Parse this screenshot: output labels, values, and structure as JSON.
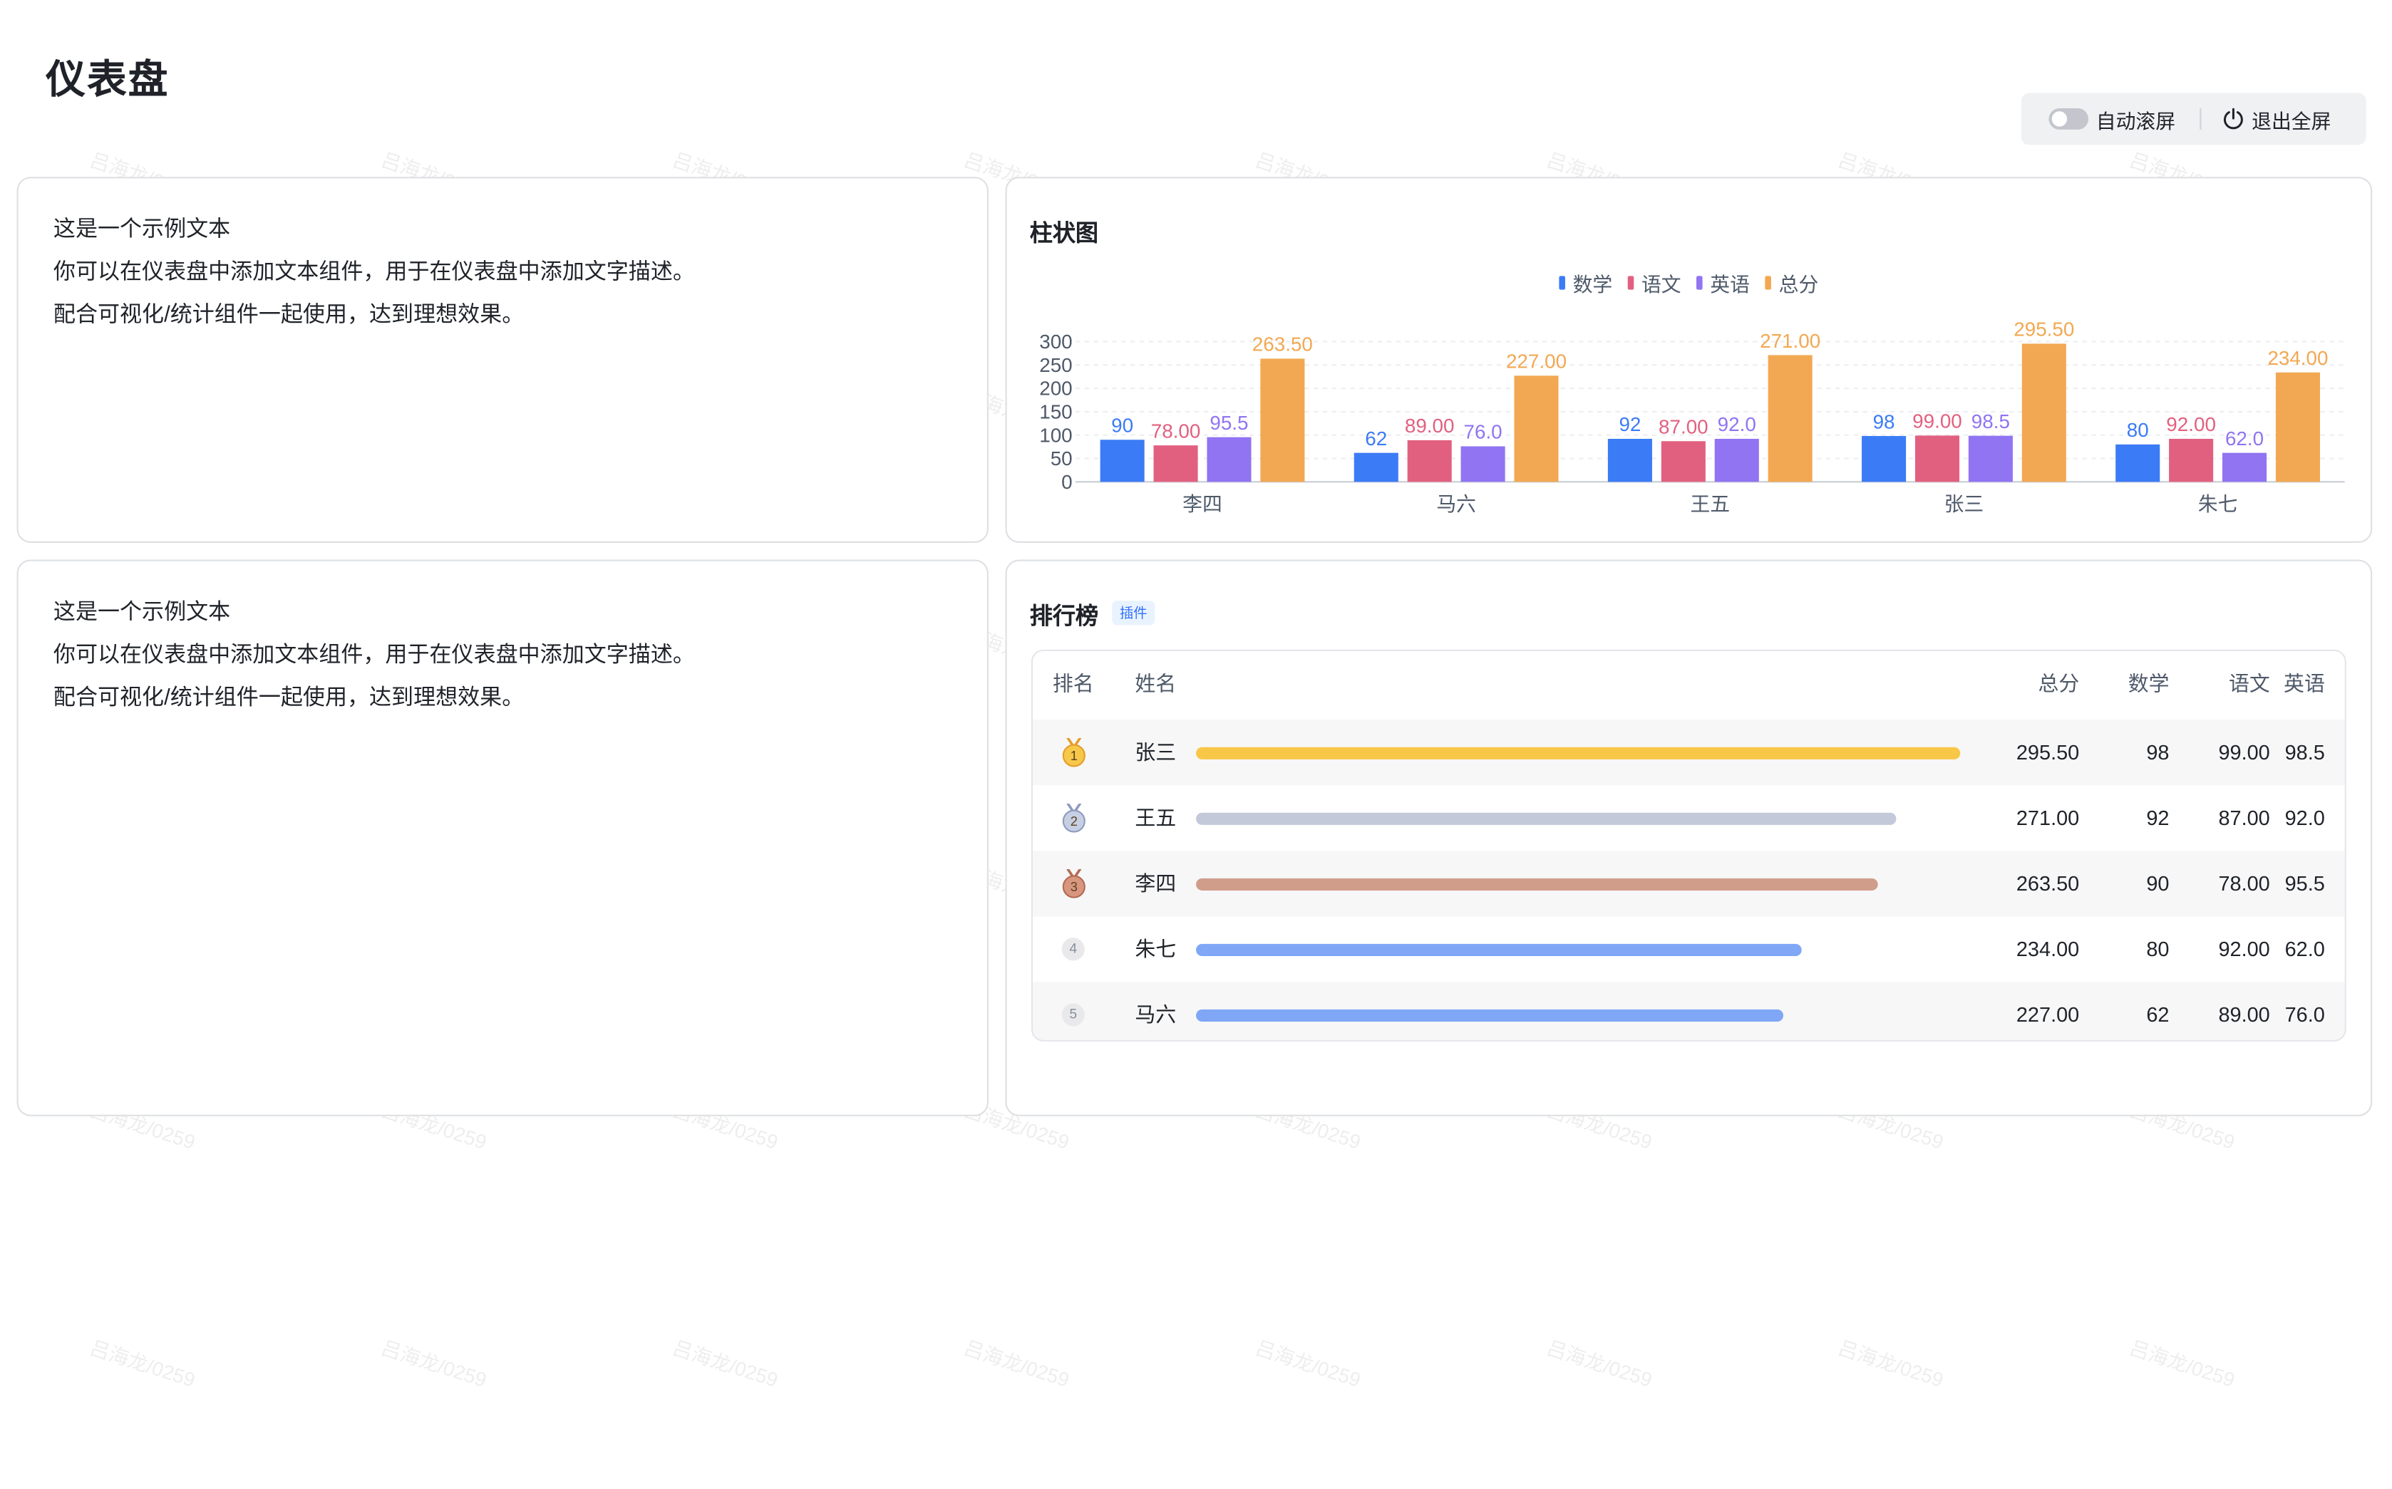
{
  "page": {
    "title": "仪表盘"
  },
  "toolbar": {
    "auto_scroll_label": "自动滚屏",
    "auto_scroll_on": false,
    "exit_fullscreen_label": "退出全屏"
  },
  "text_cards": [
    {
      "lines": [
        "这是一个示例文本",
        "你可以在仪表盘中添加文本组件，用于在仪表盘中添加文字描述。",
        "配合可视化/统计组件一起使用，达到理想效果。"
      ]
    },
    {
      "lines": [
        "这是一个示例文本",
        "你可以在仪表盘中添加文本组件，用于在仪表盘中添加文字描述。",
        "配合可视化/统计组件一起使用，达到理想效果。"
      ]
    }
  ],
  "bar_card": {
    "title": "柱状图"
  },
  "chart_data": {
    "type": "bar",
    "title": "柱状图",
    "categories": [
      "李四",
      "马六",
      "王五",
      "张三",
      "朱七"
    ],
    "series": [
      {
        "name": "数学",
        "color": "#3b7bf5",
        "values": [
          90,
          62,
          92,
          98,
          80
        ],
        "labels": [
          "90",
          "62",
          "92",
          "98",
          "80"
        ]
      },
      {
        "name": "语文",
        "color": "#e2607f",
        "values": [
          78,
          89,
          87,
          99,
          92
        ],
        "labels": [
          "78.00",
          "89.00",
          "87.00",
          "99.00",
          "92.00"
        ]
      },
      {
        "name": "英语",
        "color": "#9074f2",
        "values": [
          95.5,
          76,
          92,
          98.5,
          62
        ],
        "labels": [
          "95.5",
          "76.0",
          "92.0",
          "98.5",
          "62.0"
        ]
      },
      {
        "name": "总分",
        "color": "#f2a852",
        "values": [
          263.5,
          227,
          271,
          295.5,
          234
        ],
        "labels": [
          "263.50",
          "227.00",
          "271.00",
          "295.50",
          "234.00"
        ]
      }
    ],
    "yticks": [
      "0",
      "50",
      "100",
      "150",
      "200",
      "250",
      "300"
    ],
    "ylim": [
      0,
      300
    ],
    "grid": true,
    "legend_position": "top-center"
  },
  "ranking": {
    "title": "排行榜",
    "badge": "插件",
    "headers": {
      "rank": "排名",
      "name": "姓名",
      "total": "总分",
      "math": "数学",
      "chinese": "语文",
      "english": "英语"
    },
    "bar_max": 295.5,
    "rows": [
      {
        "rank": "1",
        "medal": "gold",
        "name": "张三",
        "total_value": 295.5,
        "total": "295.50",
        "math": "98",
        "chinese": "99.00",
        "english": "98.5",
        "bar_color": "#f8c748"
      },
      {
        "rank": "2",
        "medal": "silver",
        "name": "王五",
        "total_value": 271.0,
        "total": "271.00",
        "math": "92",
        "chinese": "87.00",
        "english": "92.0",
        "bar_color": "#c4c9d9"
      },
      {
        "rank": "3",
        "medal": "bronze",
        "name": "李四",
        "total_value": 263.5,
        "total": "263.50",
        "math": "90",
        "chinese": "78.00",
        "english": "95.5",
        "bar_color": "#d09d8b"
      },
      {
        "rank": "4",
        "medal": "none",
        "name": "朱七",
        "total_value": 234.0,
        "total": "234.00",
        "math": "80",
        "chinese": "92.00",
        "english": "62.0",
        "bar_color": "#7fa7f6"
      },
      {
        "rank": "5",
        "medal": "none",
        "name": "马六",
        "total_value": 227.0,
        "total": "227.00",
        "math": "62",
        "chinese": "89.00",
        "english": "76.0",
        "bar_color": "#7fa7f6"
      }
    ]
  },
  "watermark": {
    "text": "吕海龙/0259"
  }
}
